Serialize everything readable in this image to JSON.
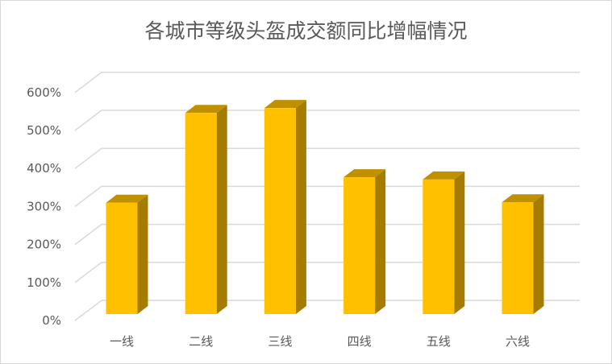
{
  "chart_data": {
    "type": "bar",
    "title": "各城市等级头盔成交额同比增幅情况",
    "categories": [
      "一线",
      "二线",
      "三线",
      "四线",
      "五线",
      "六线"
    ],
    "values": [
      293,
      529,
      542,
      360,
      354,
      294
    ],
    "unit": "%",
    "ylim": [
      0,
      600
    ],
    "yticks": [
      "0%",
      "100%",
      "200%",
      "300%",
      "400%",
      "500%",
      "600%"
    ],
    "grid": true,
    "legend": "none",
    "style": "3d-column",
    "colors": {
      "front": "#FFC000",
      "top": "#C09000",
      "side": "#A67C00",
      "grid": "#D9D9D9"
    }
  }
}
